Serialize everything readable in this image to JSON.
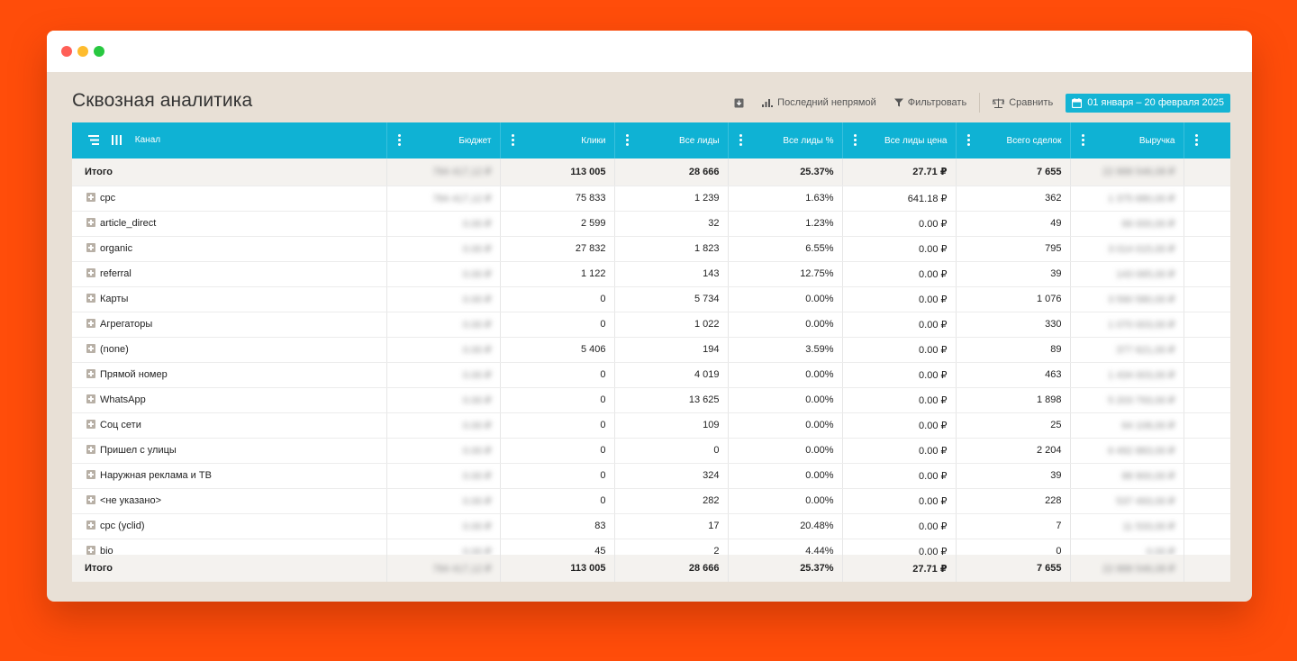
{
  "page": {
    "title": "Сквозная аналитика"
  },
  "toolbar": {
    "attribution_label": "Последний непрямой",
    "filter_label": "Фильтровать",
    "compare_label": "Сравнить",
    "date_range": "01 января – 20 февраля 2025",
    "accent_color": "#14b4d4"
  },
  "table": {
    "columns": [
      "Канал",
      "Бюджет",
      "Клики",
      "Все лиды",
      "Все лиды %",
      "Все лиды цена",
      "Всего сделок",
      "Выручка"
    ],
    "total_label": "Итого",
    "total": {
      "budget": "784 417,12 ₽",
      "clicks": "113 005",
      "leads": "28 666",
      "leads_pct": "25.37%",
      "lead_price": "27.71 ₽",
      "deals": "7 655",
      "revenue": "22 888 546,08 ₽"
    },
    "rows": [
      {
        "channel": "cpc",
        "budget": "784 417,12 ₽",
        "clicks": "75 833",
        "leads": "1 239",
        "leads_pct": "1.63%",
        "lead_price": "641.18 ₽",
        "deals": "362",
        "revenue": "1 375 680,00 ₽"
      },
      {
        "channel": "article_direct",
        "budget": "0.00 ₽",
        "clicks": "2 599",
        "leads": "32",
        "leads_pct": "1.23%",
        "lead_price": "0.00 ₽",
        "deals": "49",
        "revenue": "66 000,00 ₽"
      },
      {
        "channel": "organic",
        "budget": "0.00 ₽",
        "clicks": "27 832",
        "leads": "1 823",
        "leads_pct": "6.55%",
        "lead_price": "0.00 ₽",
        "deals": "795",
        "revenue": "3 014 015,00 ₽"
      },
      {
        "channel": "referral",
        "budget": "0.00 ₽",
        "clicks": "1 122",
        "leads": "143",
        "leads_pct": "12.75%",
        "lead_price": "0.00 ₽",
        "deals": "39",
        "revenue": "143 065,00 ₽"
      },
      {
        "channel": "Карты",
        "budget": "0.00 ₽",
        "clicks": "0",
        "leads": "5 734",
        "leads_pct": "0.00%",
        "lead_price": "0.00 ₽",
        "deals": "1 076",
        "revenue": "3 590 580,00 ₽"
      },
      {
        "channel": "Агрегаторы",
        "budget": "0.00 ₽",
        "clicks": "0",
        "leads": "1 022",
        "leads_pct": "0.00%",
        "lead_price": "0.00 ₽",
        "deals": "330",
        "revenue": "1 070 003,00 ₽"
      },
      {
        "channel": "(none)",
        "budget": "0.00 ₽",
        "clicks": "5 406",
        "leads": "194",
        "leads_pct": "3.59%",
        "lead_price": "0.00 ₽",
        "deals": "89",
        "revenue": "377 621,00 ₽"
      },
      {
        "channel": "Прямой номер",
        "budget": "0.00 ₽",
        "clicks": "0",
        "leads": "4 019",
        "leads_pct": "0.00%",
        "lead_price": "0.00 ₽",
        "deals": "463",
        "revenue": "1 434 003,00 ₽"
      },
      {
        "channel": "WhatsApp",
        "budget": "0.00 ₽",
        "clicks": "0",
        "leads": "13 625",
        "leads_pct": "0.00%",
        "lead_price": "0.00 ₽",
        "deals": "1 898",
        "revenue": "5 203 793,00 ₽"
      },
      {
        "channel": "Соц сети",
        "budget": "0.00 ₽",
        "clicks": "0",
        "leads": "109",
        "leads_pct": "0.00%",
        "lead_price": "0.00 ₽",
        "deals": "25",
        "revenue": "64 108,00 ₽"
      },
      {
        "channel": "Пришел с улицы",
        "budget": "0.00 ₽",
        "clicks": "0",
        "leads": "0",
        "leads_pct": "0.00%",
        "lead_price": "0.00 ₽",
        "deals": "2 204",
        "revenue": "6 492 883,00 ₽"
      },
      {
        "channel": "Наружная реклама и ТВ",
        "budget": "0.00 ₽",
        "clicks": "0",
        "leads": "324",
        "leads_pct": "0.00%",
        "lead_price": "0.00 ₽",
        "deals": "39",
        "revenue": "88 900,00 ₽"
      },
      {
        "channel": "<не указано>",
        "budget": "0.00 ₽",
        "clicks": "0",
        "leads": "282",
        "leads_pct": "0.00%",
        "lead_price": "0.00 ₽",
        "deals": "228",
        "revenue": "537 493,00 ₽"
      },
      {
        "channel": "cpc (yclid)",
        "budget": "0.00 ₽",
        "clicks": "83",
        "leads": "17",
        "leads_pct": "20.48%",
        "lead_price": "0.00 ₽",
        "deals": "7",
        "revenue": "11 533,00 ₽"
      },
      {
        "channel": "bio",
        "budget": "0.00 ₽",
        "clicks": "45",
        "leads": "2",
        "leads_pct": "4.44%",
        "lead_price": "0.00 ₽",
        "deals": "0",
        "revenue": "0.00 ₽"
      }
    ]
  }
}
